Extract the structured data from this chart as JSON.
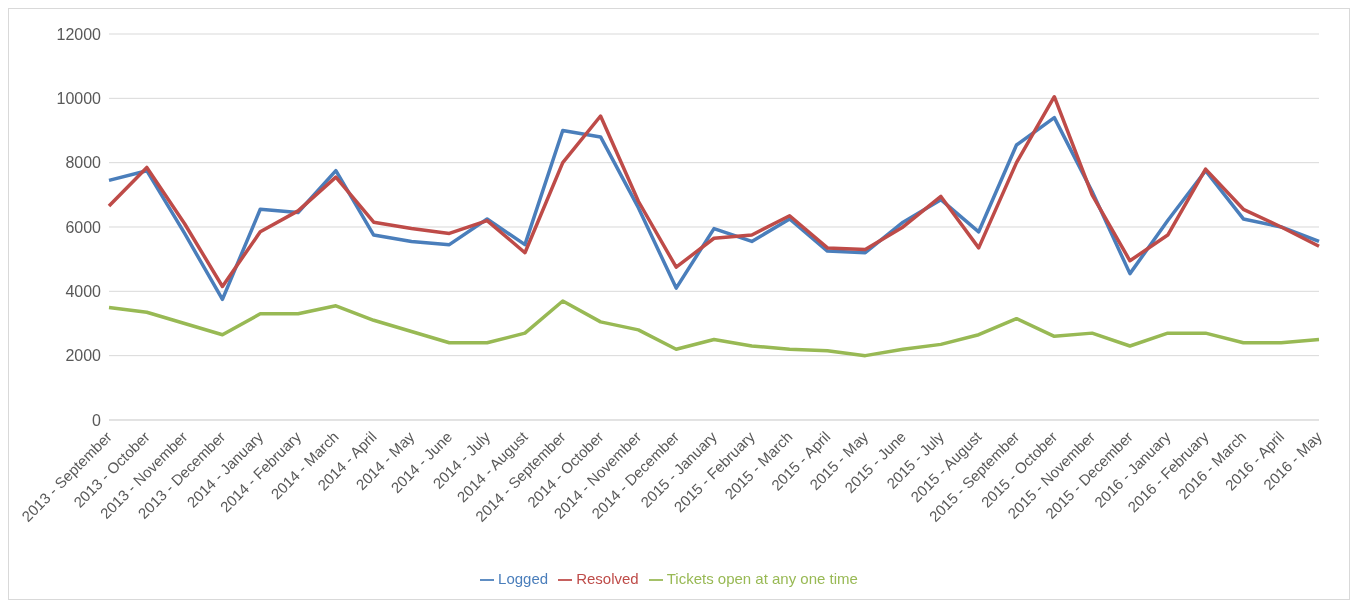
{
  "chart_data": {
    "type": "line",
    "categories": [
      "2013 - September",
      "2013 - October",
      "2013 - November",
      "2013 - December",
      "2014 - January",
      "2014 - February",
      "2014 - March",
      "2014 - April",
      "2014 - May",
      "2014 - June",
      "2014 - July",
      "2014 - August",
      "2014 - September",
      "2014 - October",
      "2014 - November",
      "2014 - December",
      "2015 - January",
      "2015 - February",
      "2015 - March",
      "2015 - April",
      "2015 - May",
      "2015 - June",
      "2015 - July",
      "2015 - August",
      "2015 - September",
      "2015 - October",
      "2015 - November",
      "2015 - December",
      "2016 - January",
      "2016 - February",
      "2016 - March",
      "2016 - April",
      "2016 - May"
    ],
    "series": [
      {
        "name": "Logged",
        "color": "#4a7ebb",
        "values": [
          7450,
          7750,
          5800,
          3750,
          6550,
          6450,
          7750,
          5750,
          5550,
          5450,
          6250,
          5450,
          9000,
          8800,
          6600,
          4100,
          5950,
          5550,
          6250,
          5250,
          5200,
          6150,
          6850,
          5850,
          8550,
          9400,
          7100,
          4550,
          6200,
          7750,
          6250,
          6000,
          5550
        ]
      },
      {
        "name": "Resolved",
        "color": "#be4b48",
        "values": [
          6650,
          7850,
          6100,
          4150,
          5850,
          6500,
          7550,
          6150,
          5950,
          5800,
          6200,
          5200,
          8000,
          9450,
          6800,
          4750,
          5650,
          5750,
          6350,
          5350,
          5300,
          6000,
          6950,
          5350,
          8000,
          10050,
          7000,
          4950,
          5750,
          7800,
          6550,
          6000,
          5400
        ]
      },
      {
        "name": "Tickets open at any one time",
        "color": "#98b954",
        "values": [
          3500,
          3350,
          3000,
          2650,
          3300,
          3300,
          3550,
          3100,
          2750,
          2400,
          2400,
          2700,
          3700,
          3050,
          2800,
          2200,
          2500,
          2300,
          2200,
          2150,
          2000,
          2200,
          2350,
          2650,
          3150,
          2600,
          2700,
          2300,
          2700,
          2700,
          2400,
          2400,
          2500
        ]
      }
    ],
    "ylim": [
      0,
      12000
    ],
    "yticks": [
      0,
      2000,
      4000,
      6000,
      8000,
      10000,
      12000
    ],
    "grid": "y",
    "legend": "bottom",
    "marker": "none",
    "line_style": "solid"
  }
}
